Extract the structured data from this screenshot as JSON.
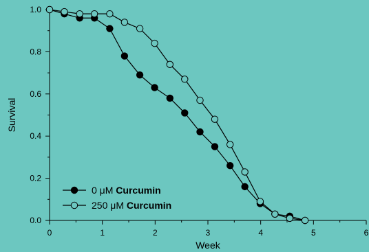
{
  "background": "#6cc7c0",
  "chart_data": {
    "type": "line",
    "xlabel": "Week",
    "ylabel": "Survival",
    "xlim": [
      0,
      6
    ],
    "ylim": [
      0,
      1
    ],
    "xticks": [
      "0",
      "1",
      "2",
      "3",
      "4",
      "5",
      "6"
    ],
    "yticks": [
      "0.0",
      "0.2",
      "0.4",
      "0.6",
      "0.8",
      "1.0"
    ],
    "grid": false,
    "legend_position": "bottom-left",
    "series": [
      {
        "name_prefix": "0 μM",
        "name_suffix": "Curcumin",
        "marker": "filled-circle",
        "color": "#000000",
        "x": [
          0,
          0.28,
          0.57,
          0.85,
          1.14,
          1.42,
          1.71,
          1.99,
          2.28,
          2.56,
          2.85,
          3.13,
          3.42,
          3.7,
          3.99,
          4.27,
          4.55,
          4.84
        ],
        "y": [
          1.0,
          0.98,
          0.96,
          0.96,
          0.91,
          0.78,
          0.69,
          0.63,
          0.58,
          0.51,
          0.42,
          0.35,
          0.26,
          0.16,
          0.08,
          0.03,
          0.02,
          0.0
        ]
      },
      {
        "name_prefix": "250 μM",
        "name_suffix": "Curcumin",
        "marker": "open-circle",
        "color": "#000000",
        "x": [
          0,
          0.28,
          0.57,
          0.85,
          1.14,
          1.42,
          1.71,
          1.99,
          2.28,
          2.56,
          2.85,
          3.13,
          3.42,
          3.7,
          3.99,
          4.27,
          4.55,
          4.84
        ],
        "y": [
          1.0,
          0.99,
          0.98,
          0.98,
          0.98,
          0.94,
          0.91,
          0.84,
          0.74,
          0.67,
          0.57,
          0.48,
          0.36,
          0.23,
          0.09,
          0.03,
          0.01,
          0.0
        ]
      }
    ]
  }
}
